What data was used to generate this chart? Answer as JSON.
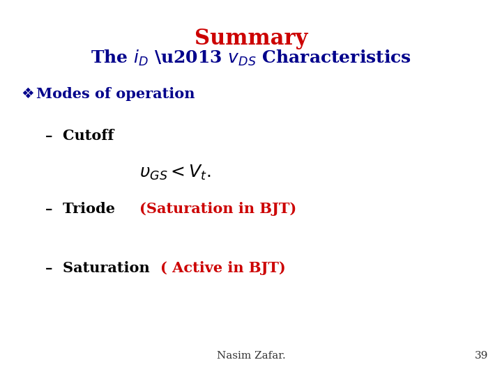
{
  "bg_color": "#ffffff",
  "title_summary": "Summary",
  "title_summary_color": "#cc0000",
  "title_summary_fontsize": 22,
  "title_sub_fontsize": 18,
  "title_sub_color": "#00008B",
  "modes_color": "#00008B",
  "modes_fontsize": 15,
  "dash_color": "#000000",
  "cutoff_fontsize": 15,
  "triode_fontsize": 15,
  "saturation_fontsize": 15,
  "bjt_color": "#cc0000",
  "bjt_fontsize": 15,
  "equation_fontsize": 18,
  "footer_fontsize": 11,
  "footer_color": "#333333",
  "page_number": "39",
  "footer_text": "Nasim Zafar."
}
